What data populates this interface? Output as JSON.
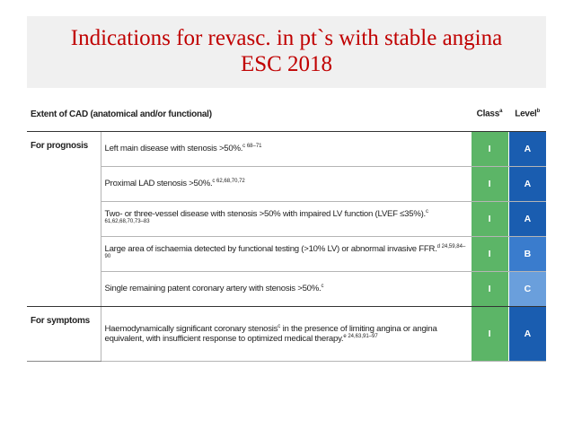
{
  "header": {
    "title_line1": "Indications for revasc. in pt`s with stable angina",
    "title_line2": "ESC 2018"
  },
  "table": {
    "columns": {
      "extent": "Extent of CAD (anatomical and/or functional)",
      "class": "Class",
      "class_sup": "a",
      "level": "Level",
      "level_sup": "b"
    },
    "class_color": "#5cb567",
    "level_colors": {
      "A": "#1a5db0",
      "B": "#3a7ccd",
      "C": "#6a9fdc"
    },
    "groups": [
      {
        "label": "For prognosis",
        "rows": [
          {
            "segments": [
              {
                "text": "Left main disease with stenosis >50%.",
                "sup": "c 68–71"
              }
            ],
            "class": "I",
            "level": "A"
          },
          {
            "segments": [
              {
                "text": "Proximal LAD stenosis >50%.",
                "sup": "c 62,68,70,72"
              }
            ],
            "class": "I",
            "level": "A"
          },
          {
            "segments": [
              {
                "text": "Two- or three-vessel disease with stenosis >50% with impaired LV function (LVEF ≤35%).",
                "sup": "c 61,62,68,70,73–83"
              }
            ],
            "class": "I",
            "level": "A"
          },
          {
            "segments": [
              {
                "text": "Large area of ischaemia detected by functional testing (>10% LV) or abnormal invasive FFR.",
                "sup": "d 24,59,84–90"
              }
            ],
            "class": "I",
            "level": "B"
          },
          {
            "segments": [
              {
                "text": "Single remaining patent coronary artery with stenosis >50%.",
                "sup": "c"
              }
            ],
            "class": "I",
            "level": "C"
          }
        ]
      },
      {
        "label": "For symptoms",
        "rows": [
          {
            "segments": [
              {
                "text": "Haemodynamically significant coronary stenosis",
                "sup": "c"
              },
              {
                "text": " in the presence of limiting angina or angina equivalent, with insufficient response to optimized medical therapy.",
                "sup": "e 24,63,91–97"
              }
            ],
            "class": "I",
            "level": "A"
          }
        ]
      }
    ]
  }
}
